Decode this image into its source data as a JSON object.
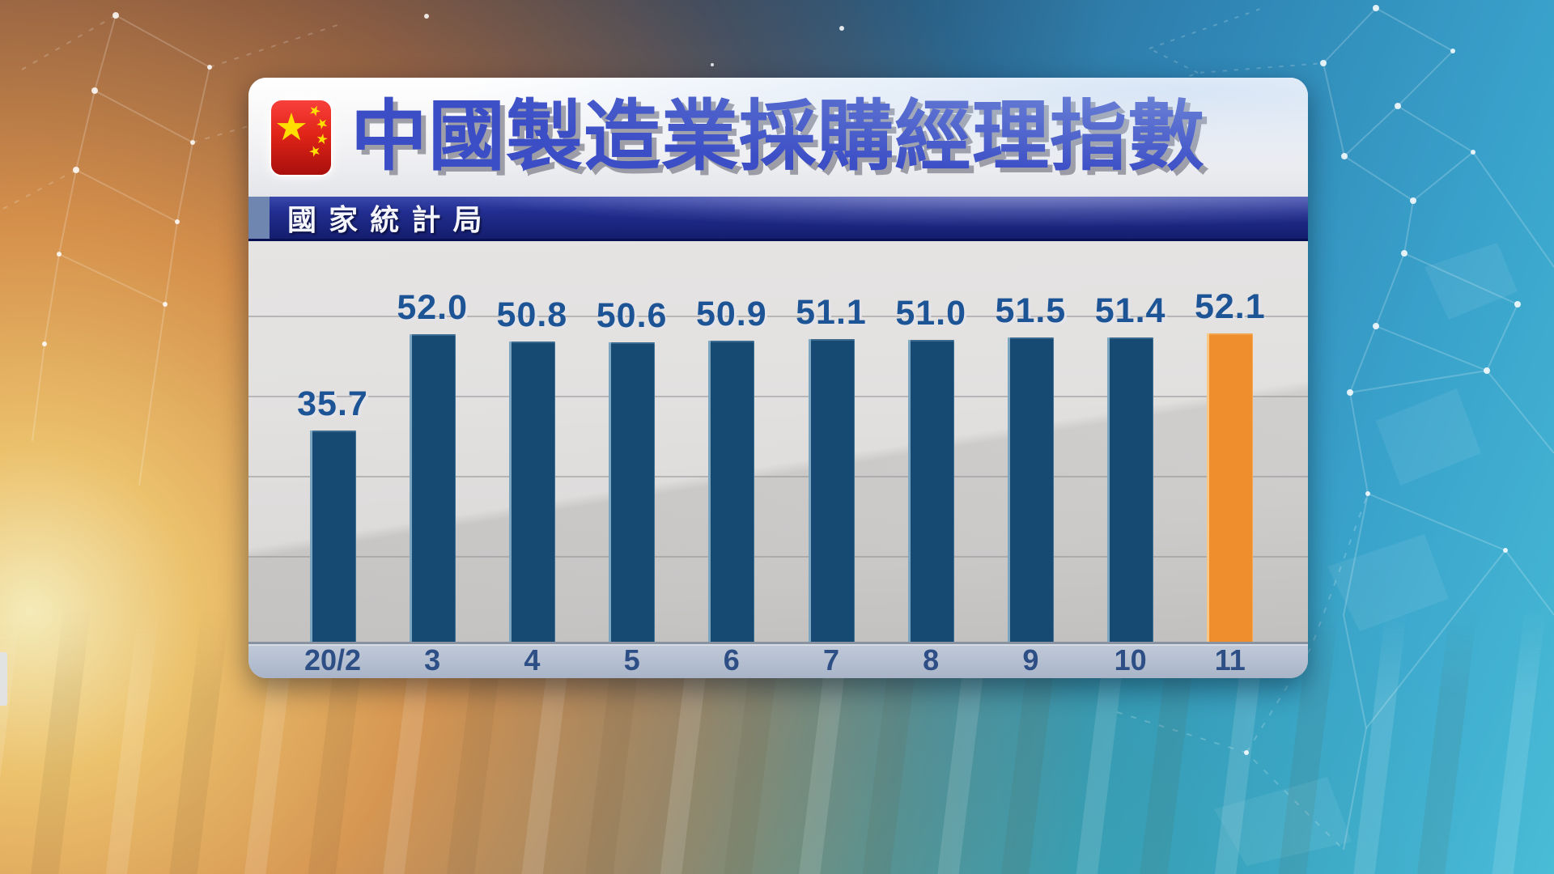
{
  "header": {
    "title": "中國製造業採購經理指數",
    "source_label": "國家統計局"
  },
  "chart_data": {
    "type": "bar",
    "title": "中國製造業採購經理指數",
    "subtitle_source": "國家統計局",
    "categories": [
      "20/2",
      "3",
      "4",
      "5",
      "6",
      "7",
      "8",
      "9",
      "10",
      "11"
    ],
    "values": [
      35.7,
      52.0,
      50.8,
      50.6,
      50.9,
      51.1,
      51.0,
      51.5,
      51.4,
      52.1
    ],
    "value_labels": [
      "35.7",
      "52.0",
      "50.8",
      "50.6",
      "50.9",
      "51.1",
      "51.0",
      "51.5",
      "51.4",
      "52.1"
    ],
    "highlight_index": 9,
    "bar_color": "#174a73",
    "highlight_color": "#ee8e2c",
    "value_label_color": "#1c5496",
    "axis_label_color": "#2d4f86",
    "ylim": [
      0,
      55
    ],
    "grid": true,
    "legend": "none",
    "xlabel": "",
    "ylabel": ""
  },
  "colors": {
    "title_blue": "#3c4ec6",
    "source_bar_navy": "#222e90",
    "panel_plot_gray": "#d5d3d2",
    "axis_strip": "#b3bed0",
    "background_orange_glow": "#f3a04a",
    "background_blue": "#2f85b4",
    "background_teal": "#40b298"
  },
  "icons": {
    "flag": "china-flag-icon"
  }
}
